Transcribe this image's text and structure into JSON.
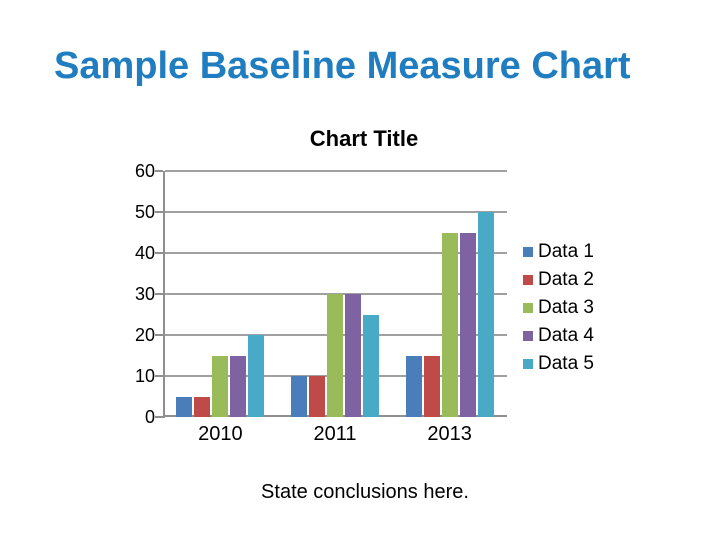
{
  "slide": {
    "title": "Sample Baseline Measure Chart",
    "title_color": "#1f7dc0",
    "conclusion": "State conclusions here."
  },
  "chart_data": {
    "type": "bar",
    "title": "Chart Title",
    "categories": [
      "2010",
      "2011",
      "2013"
    ],
    "series": [
      {
        "name": "Data 1",
        "color": "#4a7ebb",
        "values": [
          5,
          10,
          15
        ]
      },
      {
        "name": "Data 2",
        "color": "#be4b48",
        "values": [
          5,
          10,
          15
        ]
      },
      {
        "name": "Data 3",
        "color": "#9abb59",
        "values": [
          15,
          30,
          45
        ]
      },
      {
        "name": "Data 4",
        "color": "#7e62a1",
        "values": [
          15,
          30,
          45
        ]
      },
      {
        "name": "Data 5",
        "color": "#48aac6",
        "values": [
          20,
          25,
          50
        ]
      }
    ],
    "xlabel": "",
    "ylabel": "",
    "ylim": [
      0,
      60
    ],
    "yticks": [
      0,
      10,
      20,
      30,
      40,
      50,
      60
    ],
    "grid": true,
    "legend_position": "right",
    "axis_color": "#8f8f8f",
    "gridline_color": "#a0a0a0",
    "tick_color": "#8f8f8f"
  }
}
